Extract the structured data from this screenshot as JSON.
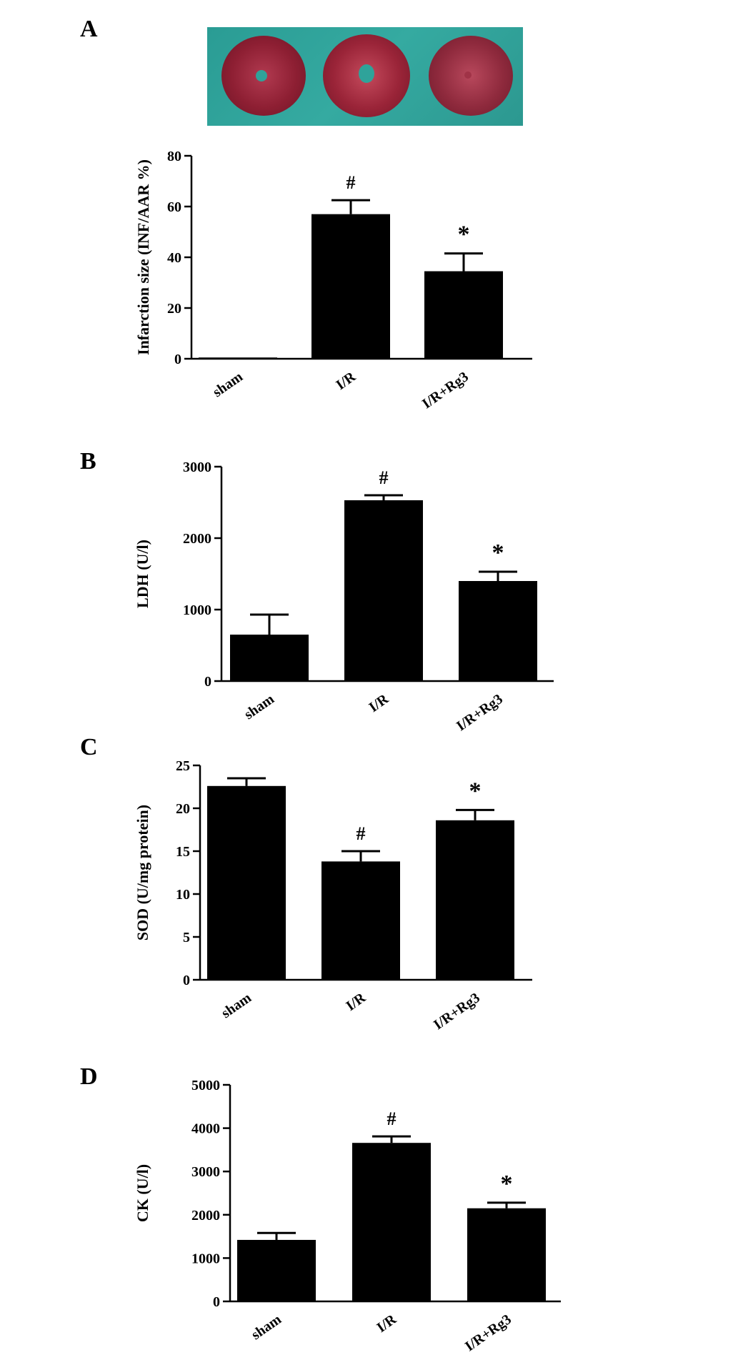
{
  "panels": [
    {
      "letter": "A"
    },
    {
      "letter": "B"
    },
    {
      "letter": "C"
    },
    {
      "letter": "D"
    }
  ],
  "photo": {
    "hearts": 3,
    "background_color": "#2fa39a",
    "tissue_color": "#8e1f33"
  },
  "chart_data": [
    {
      "type": "bar",
      "panel": "A",
      "categories": [
        "sham",
        "I/R",
        "I/R+Rg3"
      ],
      "values": [
        0.5,
        57,
        34.5
      ],
      "errors": [
        0,
        5.5,
        7
      ],
      "annotations": [
        "",
        "#",
        "*"
      ],
      "ylabel": "Infarction size (INF/AAR %)",
      "xlabel": "",
      "yticks": [
        0,
        20,
        40,
        60,
        80
      ],
      "ylim": [
        0,
        80
      ],
      "grid": false,
      "bar_color": "#000000"
    },
    {
      "type": "bar",
      "panel": "B",
      "categories": [
        "sham",
        "I/R",
        "I/R+Rg3"
      ],
      "values": [
        650,
        2530,
        1400
      ],
      "errors": [
        280,
        70,
        130
      ],
      "annotations": [
        "",
        "#",
        "*"
      ],
      "ylabel": "LDH (U/l)",
      "xlabel": "",
      "yticks": [
        0,
        1000,
        2000,
        3000
      ],
      "ylim": [
        0,
        3000
      ],
      "grid": false,
      "bar_color": "#000000"
    },
    {
      "type": "bar",
      "panel": "C",
      "categories": [
        "sham",
        "I/R",
        "I/R+Rg3"
      ],
      "values": [
        22.6,
        13.8,
        18.6
      ],
      "errors": [
        0.9,
        1.2,
        1.2
      ],
      "annotations": [
        "",
        "#",
        "*"
      ],
      "ylabel": "SOD (U/mg protein)",
      "xlabel": "",
      "yticks": [
        0,
        5,
        10,
        15,
        20,
        25
      ],
      "ylim": [
        0,
        25
      ],
      "grid": false,
      "bar_color": "#000000"
    },
    {
      "type": "bar",
      "panel": "D",
      "categories": [
        "sham",
        "I/R",
        "I/R+Rg3"
      ],
      "values": [
        1420,
        3660,
        2150
      ],
      "errors": [
        160,
        150,
        130
      ],
      "annotations": [
        "",
        "#",
        "*"
      ],
      "ylabel": "CK (U/l)",
      "xlabel": "",
      "yticks": [
        0,
        1000,
        2000,
        3000,
        4000,
        5000
      ],
      "ylim": [
        0,
        5000
      ],
      "grid": false,
      "bar_color": "#000000"
    }
  ]
}
